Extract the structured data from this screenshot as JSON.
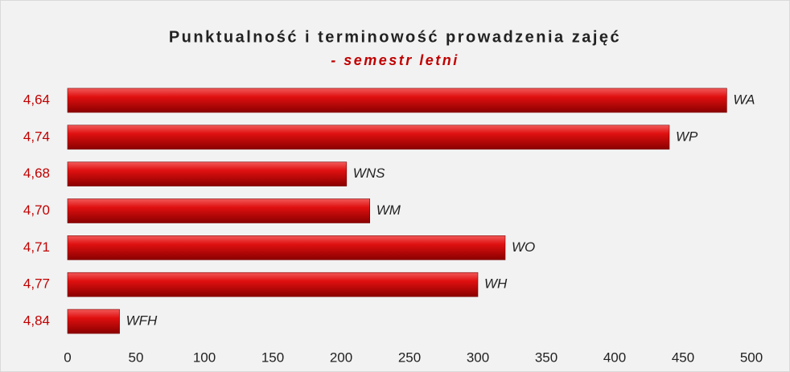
{
  "chart_data": {
    "type": "bar",
    "orientation": "horizontal",
    "title": "Punktualność i terminowość prowadzenia zajęć",
    "subtitle": "- semestr letni",
    "categories": [
      "4,64",
      "4,74",
      "4,68",
      "4,70",
      "4,71",
      "4,77",
      "4,84"
    ],
    "bar_labels": [
      "WA",
      "WP",
      "WNS",
      "WM",
      "WO",
      "WH",
      "WFH"
    ],
    "values": [
      482,
      440,
      204,
      221,
      320,
      300,
      38
    ],
    "color": "#d10a0a",
    "xlim": [
      0,
      500
    ],
    "xticks": [
      0,
      50,
      100,
      150,
      200,
      250,
      300,
      350,
      400,
      450,
      500
    ],
    "grid": false
  }
}
